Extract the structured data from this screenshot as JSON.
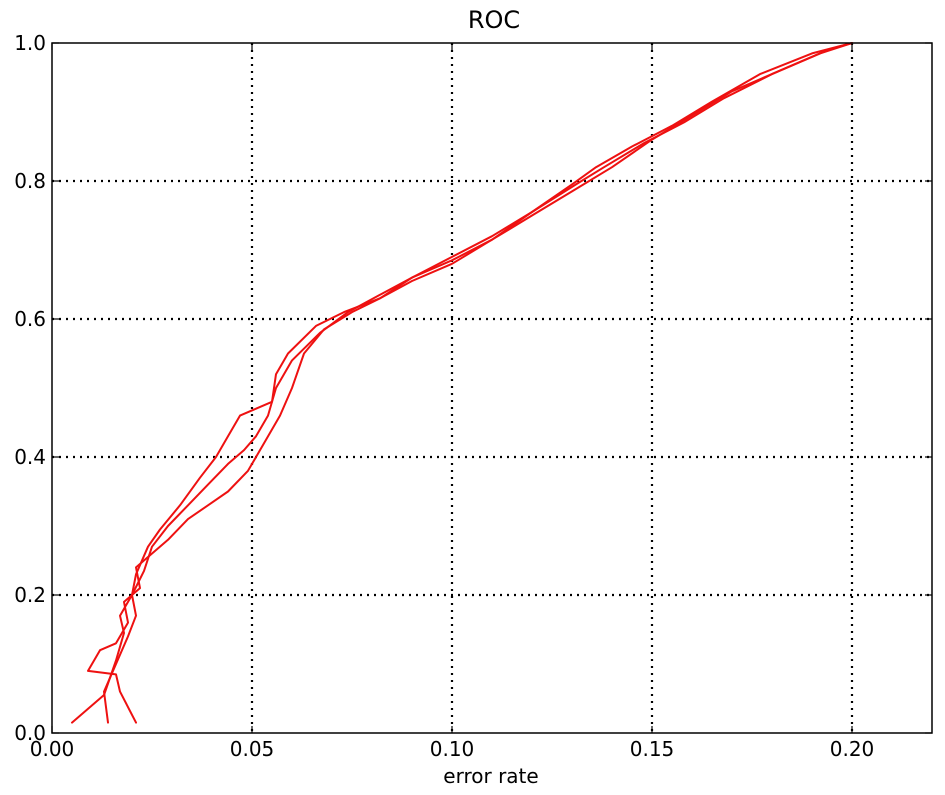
{
  "chart_data": {
    "type": "line",
    "title": "ROC",
    "xlabel": "error rate",
    "ylabel": "",
    "xlim": [
      0.0,
      0.22
    ],
    "ylim": [
      0.0,
      1.0
    ],
    "xticks": [
      0.0,
      0.05,
      0.1,
      0.15,
      0.2
    ],
    "xtick_labels": [
      "0.00",
      "0.05",
      "0.10",
      "0.15",
      "0.20"
    ],
    "yticks": [
      0.0,
      0.2,
      0.4,
      0.6,
      0.8,
      1.0
    ],
    "ytick_labels": [
      "0.0",
      "0.2",
      "0.4",
      "0.6",
      "0.8",
      "1.0"
    ],
    "grid": true,
    "grid_style": "dotted",
    "line_color": "#ee1111",
    "series": [
      {
        "x": [
          0.005,
          0.013,
          0.016,
          0.018,
          0.017,
          0.02,
          0.021,
          0.024,
          0.027,
          0.032,
          0.037,
          0.041,
          0.044,
          0.047,
          0.051,
          0.055,
          0.056,
          0.059,
          0.066,
          0.073,
          0.082,
          0.09,
          0.1,
          0.11,
          0.12,
          0.13,
          0.136,
          0.145,
          0.155,
          0.165,
          0.177,
          0.19,
          0.2
        ],
        "y": [
          0.015,
          0.055,
          0.105,
          0.145,
          0.17,
          0.2,
          0.23,
          0.27,
          0.295,
          0.33,
          0.37,
          0.4,
          0.43,
          0.46,
          0.47,
          0.48,
          0.52,
          0.55,
          0.59,
          0.61,
          0.63,
          0.66,
          0.685,
          0.715,
          0.755,
          0.795,
          0.82,
          0.85,
          0.88,
          0.915,
          0.955,
          0.985,
          1.0
        ]
      },
      {
        "x": [
          0.014,
          0.013,
          0.016,
          0.019,
          0.021,
          0.02,
          0.023,
          0.025,
          0.029,
          0.034,
          0.039,
          0.044,
          0.048,
          0.051,
          0.054,
          0.056,
          0.06,
          0.067,
          0.074,
          0.082,
          0.09,
          0.1,
          0.11,
          0.12,
          0.131,
          0.138,
          0.148,
          0.158,
          0.168,
          0.18,
          0.192,
          0.2
        ],
        "y": [
          0.015,
          0.06,
          0.1,
          0.14,
          0.17,
          0.2,
          0.235,
          0.27,
          0.3,
          0.33,
          0.36,
          0.39,
          0.41,
          0.43,
          0.46,
          0.5,
          0.54,
          0.58,
          0.61,
          0.635,
          0.66,
          0.69,
          0.72,
          0.755,
          0.795,
          0.82,
          0.855,
          0.885,
          0.92,
          0.955,
          0.985,
          1.0
        ]
      },
      {
        "x": [
          0.021,
          0.017,
          0.016,
          0.009,
          0.012,
          0.016,
          0.019,
          0.018,
          0.022,
          0.021,
          0.024,
          0.029,
          0.034,
          0.039,
          0.044,
          0.049,
          0.053,
          0.057,
          0.06,
          0.063,
          0.068,
          0.075,
          0.082,
          0.09,
          0.1,
          0.11,
          0.12,
          0.13,
          0.14,
          0.15,
          0.16,
          0.17,
          0.182,
          0.194,
          0.2
        ],
        "y": [
          0.015,
          0.06,
          0.085,
          0.09,
          0.12,
          0.13,
          0.16,
          0.19,
          0.21,
          0.24,
          0.255,
          0.28,
          0.31,
          0.33,
          0.35,
          0.38,
          0.42,
          0.46,
          0.5,
          0.55,
          0.585,
          0.61,
          0.63,
          0.655,
          0.68,
          0.715,
          0.75,
          0.785,
          0.82,
          0.86,
          0.895,
          0.93,
          0.96,
          0.99,
          1.0
        ]
      }
    ]
  }
}
